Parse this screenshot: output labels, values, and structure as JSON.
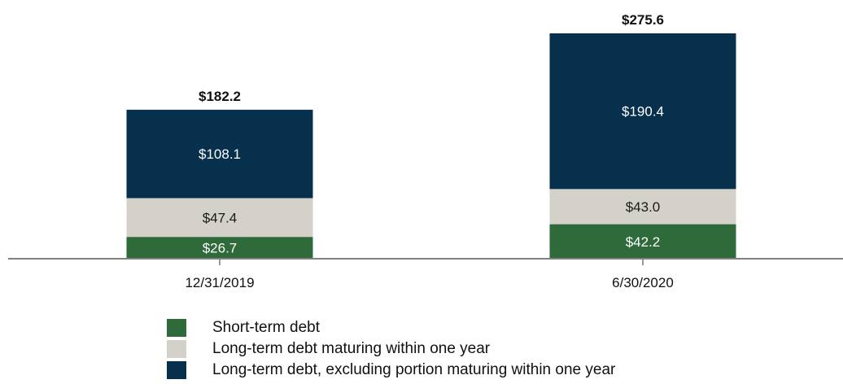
{
  "chart_data": {
    "type": "bar",
    "stacked": true,
    "categories": [
      "12/31/2019",
      "6/30/2020"
    ],
    "series": [
      {
        "name": "Short-term debt",
        "values": [
          26.7,
          42.2
        ],
        "labels": [
          "$26.7",
          "$42.2"
        ],
        "color": "#2e6a3a",
        "label_color": "#ffffff"
      },
      {
        "name": "Long-term debt maturing within one year",
        "values": [
          47.4,
          43.0
        ],
        "labels": [
          "$47.4",
          "$43.0"
        ],
        "color": "#d4d0ca",
        "label_color": "#1a1a1a"
      },
      {
        "name": "Long-term debt, excluding portion maturing within one year",
        "values": [
          108.1,
          190.4
        ],
        "labels": [
          "$108.1",
          "$190.4"
        ],
        "color": "#07304d",
        "label_color": "#ffffff"
      }
    ],
    "totals": [
      182.2,
      275.6
    ],
    "total_labels": [
      "$182.2",
      "$275.6"
    ],
    "ylim": [
      0,
      275.6
    ],
    "grid": false,
    "legend_position": "bottom-left"
  }
}
